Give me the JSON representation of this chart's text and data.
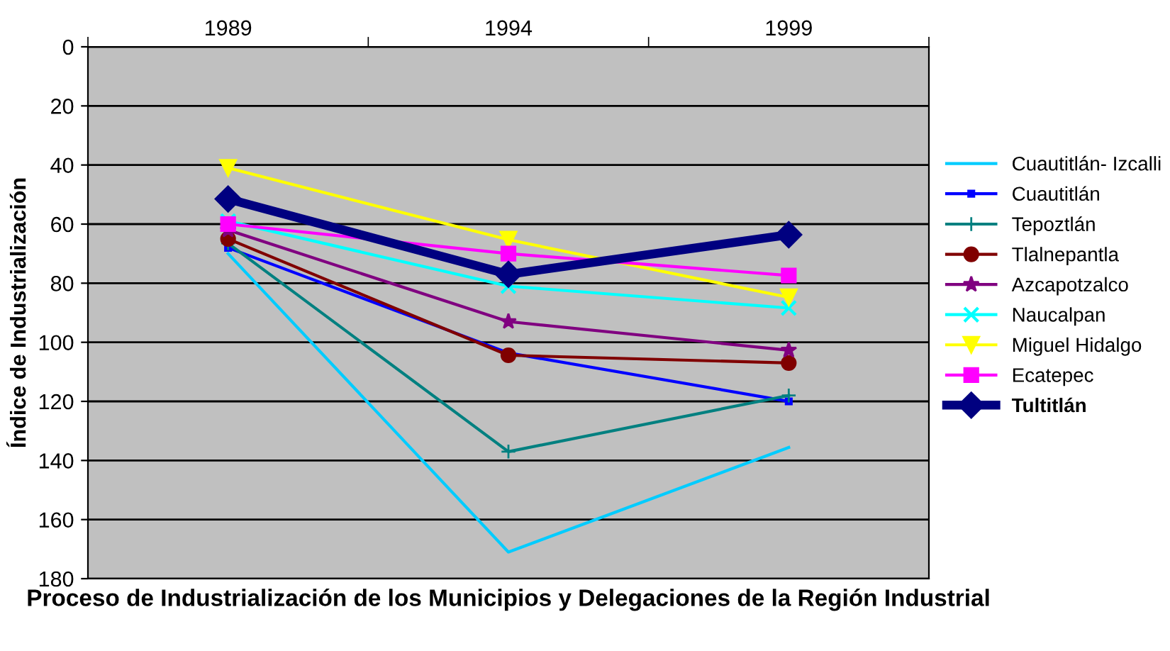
{
  "chart_data": {
    "type": "line",
    "title": "Proceso de Industrialización de los Municipios y Delegaciones de la Región Industrial",
    "ylabel": "Índice de Industrialización",
    "categories": [
      "1989",
      "1994",
      "1999"
    ],
    "ylim": [
      180,
      0
    ],
    "yticks": [
      0,
      20,
      40,
      60,
      80,
      100,
      120,
      140,
      160,
      180
    ],
    "grid": "y",
    "legend": "right",
    "series": [
      {
        "name": "Cuautitlán- Izcalli",
        "color": "#00ccff",
        "marker": "none",
        "values": [
          70,
          171,
          135.6
        ]
      },
      {
        "name": "Cuautitlán",
        "color": "#0000ff",
        "marker": "square",
        "values": [
          68,
          103.6,
          120
        ]
      },
      {
        "name": "Tepoztlán",
        "color": "#008080",
        "marker": "plus",
        "values": [
          66.5,
          137,
          118
        ]
      },
      {
        "name": "Tlalnepantla",
        "color": "#800000",
        "marker": "circle",
        "values": [
          65,
          104.4,
          107
        ]
      },
      {
        "name": "Azcapotzalco",
        "color": "#800080",
        "marker": "star",
        "values": [
          62,
          93,
          102.7
        ]
      },
      {
        "name": "Naucalpan",
        "color": "#00ffff",
        "marker": "cross",
        "values": [
          59,
          81,
          88.4
        ]
      },
      {
        "name": "Miguel Hidalgo",
        "color": "#ffff00",
        "marker": "triangle_down",
        "values": [
          41,
          65.3,
          84.8
        ]
      },
      {
        "name": "Ecatepec",
        "color": "#ff00ff",
        "marker": "square",
        "values": [
          60,
          70,
          77.4
        ]
      },
      {
        "name": "Tultitlán",
        "color": "#000080",
        "marker": "diamond",
        "values": [
          51.5,
          77,
          63.6
        ]
      }
    ]
  }
}
